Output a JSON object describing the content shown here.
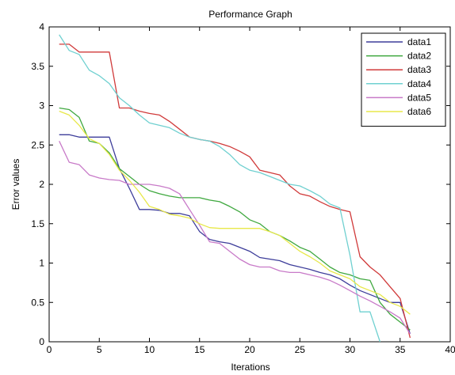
{
  "chart_data": {
    "type": "line",
    "title": "Performance Graph",
    "xlabel": "Iterations",
    "ylabel": "Error values",
    "xlim": [
      0,
      40
    ],
    "ylim": [
      0,
      4
    ],
    "xticks": [
      0,
      5,
      10,
      15,
      20,
      25,
      30,
      35,
      40
    ],
    "yticks": [
      0,
      0.5,
      1,
      1.5,
      2,
      2.5,
      3,
      3.5,
      4
    ],
    "grid": false,
    "legend_position": "top-right",
    "series": [
      {
        "name": "data1",
        "color": "#3d3d9a",
        "x": [
          1,
          2,
          3,
          4,
          5,
          6,
          7,
          8,
          9,
          10,
          11,
          12,
          13,
          14,
          15,
          16,
          17,
          18,
          19,
          20,
          21,
          22,
          23,
          24,
          25,
          26,
          27,
          28,
          29,
          30,
          31,
          32,
          33,
          34,
          35,
          36
        ],
        "y": [
          2.63,
          2.63,
          2.6,
          2.6,
          2.6,
          2.6,
          2.2,
          1.95,
          1.68,
          1.68,
          1.67,
          1.63,
          1.63,
          1.6,
          1.4,
          1.3,
          1.27,
          1.25,
          1.2,
          1.15,
          1.07,
          1.05,
          1.03,
          0.98,
          0.95,
          0.92,
          0.88,
          0.85,
          0.8,
          0.72,
          0.65,
          0.6,
          0.55,
          0.5,
          0.5,
          0.1
        ]
      },
      {
        "name": "data2",
        "color": "#3fa83f",
        "x": [
          1,
          2,
          3,
          4,
          5,
          6,
          7,
          8,
          9,
          10,
          11,
          12,
          13,
          14,
          15,
          16,
          17,
          18,
          19,
          20,
          21,
          22,
          23,
          24,
          25,
          26,
          27,
          28,
          29,
          30,
          31,
          32,
          33,
          34,
          35,
          36
        ],
        "y": [
          2.97,
          2.95,
          2.85,
          2.55,
          2.52,
          2.4,
          2.2,
          2.1,
          2.0,
          1.92,
          1.88,
          1.85,
          1.83,
          1.83,
          1.83,
          1.8,
          1.78,
          1.72,
          1.65,
          1.55,
          1.5,
          1.4,
          1.35,
          1.28,
          1.2,
          1.15,
          1.05,
          0.95,
          0.88,
          0.85,
          0.8,
          0.78,
          0.5,
          0.35,
          0.25,
          0.15
        ]
      },
      {
        "name": "data3",
        "color": "#d03a3a",
        "x": [
          1,
          2,
          3,
          4,
          5,
          6,
          7,
          8,
          9,
          10,
          11,
          12,
          13,
          14,
          15,
          16,
          17,
          18,
          19,
          20,
          21,
          22,
          23,
          24,
          25,
          26,
          27,
          28,
          29,
          30,
          31,
          32,
          33,
          34,
          35,
          36
        ],
        "y": [
          3.78,
          3.78,
          3.68,
          3.68,
          3.68,
          3.68,
          2.97,
          2.97,
          2.93,
          2.9,
          2.88,
          2.8,
          2.7,
          2.6,
          2.57,
          2.55,
          2.52,
          2.48,
          2.42,
          2.35,
          2.18,
          2.15,
          2.12,
          1.98,
          1.88,
          1.85,
          1.78,
          1.72,
          1.68,
          1.65,
          1.08,
          0.95,
          0.85,
          0.7,
          0.55,
          0.05
        ]
      },
      {
        "name": "data4",
        "color": "#6fd0d0",
        "x": [
          1,
          2,
          3,
          4,
          5,
          6,
          7,
          8,
          9,
          10,
          11,
          12,
          13,
          14,
          15,
          16,
          17,
          18,
          19,
          20,
          21,
          22,
          23,
          24,
          25,
          26,
          27,
          28,
          29,
          30,
          31,
          32,
          33
        ],
        "y": [
          3.9,
          3.7,
          3.65,
          3.45,
          3.38,
          3.28,
          3.1,
          3.0,
          2.88,
          2.78,
          2.75,
          2.72,
          2.65,
          2.6,
          2.57,
          2.55,
          2.48,
          2.38,
          2.25,
          2.18,
          2.15,
          2.1,
          2.05,
          2.0,
          1.98,
          1.92,
          1.85,
          1.75,
          1.7,
          1.1,
          0.38,
          0.38,
          0.0
        ]
      },
      {
        "name": "data5",
        "color": "#c87ac8",
        "x": [
          1,
          2,
          3,
          4,
          5,
          6,
          7,
          8,
          9,
          10,
          11,
          12,
          13,
          14,
          15,
          16,
          17,
          18,
          19,
          20,
          21,
          22,
          23,
          24,
          25,
          26,
          27,
          28,
          29,
          30,
          31,
          32,
          33,
          34,
          35,
          36
        ],
        "y": [
          2.55,
          2.28,
          2.25,
          2.12,
          2.08,
          2.06,
          2.05,
          2.0,
          2.0,
          2.0,
          1.98,
          1.95,
          1.88,
          1.68,
          1.48,
          1.27,
          1.25,
          1.15,
          1.05,
          0.98,
          0.95,
          0.95,
          0.9,
          0.88,
          0.88,
          0.85,
          0.82,
          0.78,
          0.72,
          0.65,
          0.58,
          0.52,
          0.45,
          0.38,
          0.3,
          0.1
        ]
      },
      {
        "name": "data6",
        "color": "#e8e84a",
        "x": [
          1,
          2,
          3,
          4,
          5,
          6,
          7,
          8,
          9,
          10,
          11,
          12,
          13,
          14,
          15,
          16,
          17,
          18,
          19,
          20,
          21,
          22,
          23,
          24,
          25,
          26,
          27,
          28,
          29,
          30,
          31,
          32,
          33,
          34,
          35,
          36
        ],
        "y": [
          2.93,
          2.88,
          2.75,
          2.58,
          2.52,
          2.38,
          2.18,
          2.05,
          1.9,
          1.72,
          1.68,
          1.62,
          1.6,
          1.57,
          1.5,
          1.45,
          1.44,
          1.44,
          1.44,
          1.44,
          1.44,
          1.4,
          1.35,
          1.25,
          1.15,
          1.08,
          1.0,
          0.9,
          0.85,
          0.8,
          0.7,
          0.65,
          0.6,
          0.5,
          0.45,
          0.35
        ]
      }
    ]
  }
}
